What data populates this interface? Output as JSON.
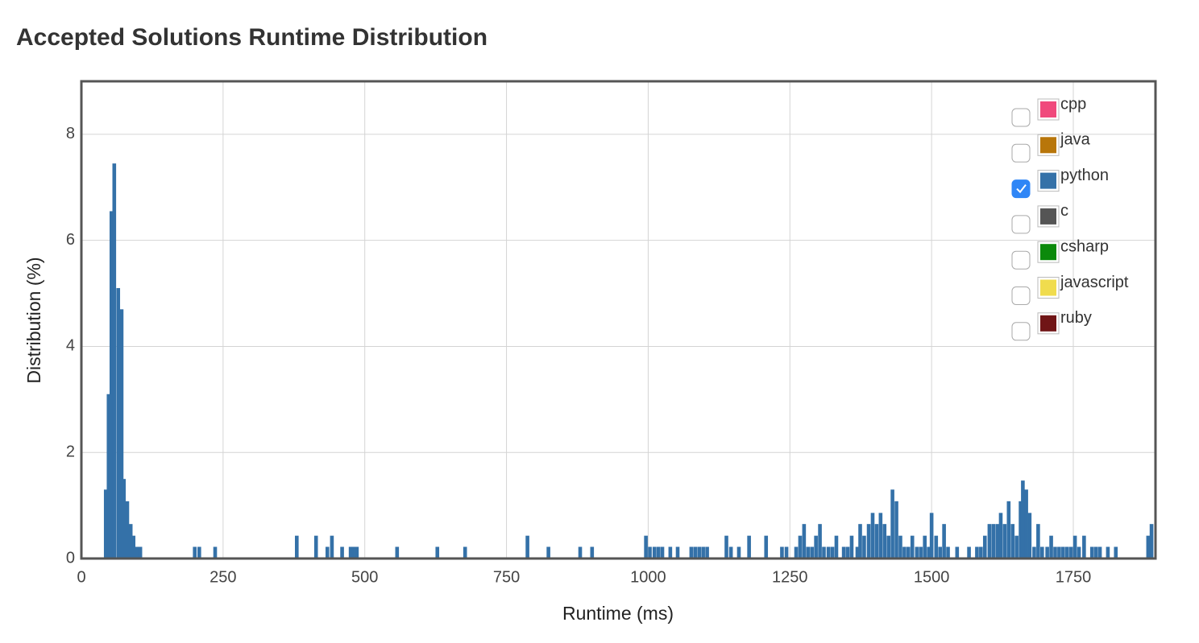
{
  "chart_data": {
    "type": "bar",
    "title": "Accepted Solutions Runtime Distribution",
    "x_label": "Runtime (ms)",
    "y_label": "Distribution (%)",
    "xlim": [
      0,
      1895
    ],
    "ylim": [
      0,
      9
    ],
    "xticks": [
      0,
      250,
      500,
      750,
      1000,
      1250,
      1500,
      1750
    ],
    "yticks": [
      0,
      2,
      4,
      6,
      8
    ],
    "grid": true,
    "legend_position": "upper right",
    "series": [
      {
        "name": "cpp",
        "color": "#f0497c",
        "visible": false,
        "x": [],
        "values": []
      },
      {
        "name": "java",
        "color": "#b8760a",
        "visible": false,
        "x": [],
        "values": []
      },
      {
        "name": "python",
        "color": "#3471a8",
        "visible": true,
        "x": [
          43,
          48,
          53,
          58,
          65,
          71,
          75,
          81,
          87,
          92,
          98,
          104,
          200,
          208,
          236,
          380,
          414,
          434,
          442,
          460,
          475,
          480,
          486,
          557,
          628,
          677,
          787,
          824,
          880,
          901,
          996,
          1003,
          1011,
          1018,
          1025,
          1039,
          1052,
          1076,
          1083,
          1090,
          1097,
          1104,
          1138,
          1146,
          1160,
          1178,
          1208,
          1236,
          1244,
          1261,
          1268,
          1275,
          1282,
          1289,
          1296,
          1303,
          1310,
          1318,
          1325,
          1332,
          1345,
          1352,
          1359,
          1369,
          1374,
          1381,
          1389,
          1396,
          1403,
          1410,
          1417,
          1424,
          1431,
          1438,
          1445,
          1452,
          1459,
          1466,
          1474,
          1481,
          1488,
          1495,
          1500,
          1508,
          1515,
          1522,
          1529,
          1545,
          1566,
          1580,
          1587,
          1594,
          1602,
          1609,
          1616,
          1622,
          1629,
          1636,
          1643,
          1650,
          1657,
          1661,
          1667,
          1673,
          1681,
          1688,
          1695,
          1704,
          1711,
          1718,
          1725,
          1732,
          1739,
          1746,
          1753,
          1760,
          1769,
          1783,
          1790,
          1797,
          1811,
          1825,
          1882,
          1888
        ],
        "values": [
          1.3,
          3.1,
          6.55,
          7.45,
          5.1,
          4.7,
          1.5,
          1.08,
          0.65,
          0.43,
          0.22,
          0.22,
          0.22,
          0.22,
          0.22,
          0.43,
          0.43,
          0.22,
          0.43,
          0.22,
          0.22,
          0.22,
          0.22,
          0.22,
          0.22,
          0.22,
          0.43,
          0.22,
          0.22,
          0.22,
          0.43,
          0.22,
          0.22,
          0.22,
          0.22,
          0.22,
          0.22,
          0.22,
          0.22,
          0.22,
          0.22,
          0.22,
          0.43,
          0.22,
          0.22,
          0.43,
          0.43,
          0.22,
          0.22,
          0.22,
          0.43,
          0.65,
          0.22,
          0.22,
          0.43,
          0.65,
          0.22,
          0.22,
          0.22,
          0.43,
          0.22,
          0.22,
          0.43,
          0.22,
          0.65,
          0.43,
          0.65,
          0.86,
          0.65,
          0.86,
          0.65,
          0.43,
          1.3,
          1.08,
          0.43,
          0.22,
          0.22,
          0.43,
          0.22,
          0.22,
          0.43,
          0.22,
          0.86,
          0.43,
          0.22,
          0.65,
          0.22,
          0.22,
          0.22,
          0.22,
          0.22,
          0.43,
          0.65,
          0.65,
          0.65,
          0.86,
          0.65,
          1.08,
          0.65,
          0.43,
          1.08,
          1.47,
          1.3,
          0.86,
          0.22,
          0.65,
          0.22,
          0.22,
          0.43,
          0.22,
          0.22,
          0.22,
          0.22,
          0.22,
          0.43,
          0.22,
          0.43,
          0.22,
          0.22,
          0.22,
          0.22,
          0.22,
          0.43,
          0.65
        ]
      },
      {
        "name": "c",
        "color": "#555555",
        "visible": false,
        "x": [],
        "values": []
      },
      {
        "name": "csharp",
        "color": "#0b8a0b",
        "visible": false,
        "x": [],
        "values": []
      },
      {
        "name": "javascript",
        "color": "#f0dc4e",
        "visible": false,
        "x": [],
        "values": []
      },
      {
        "name": "ruby",
        "color": "#701516",
        "visible": false,
        "x": [],
        "values": []
      }
    ]
  }
}
